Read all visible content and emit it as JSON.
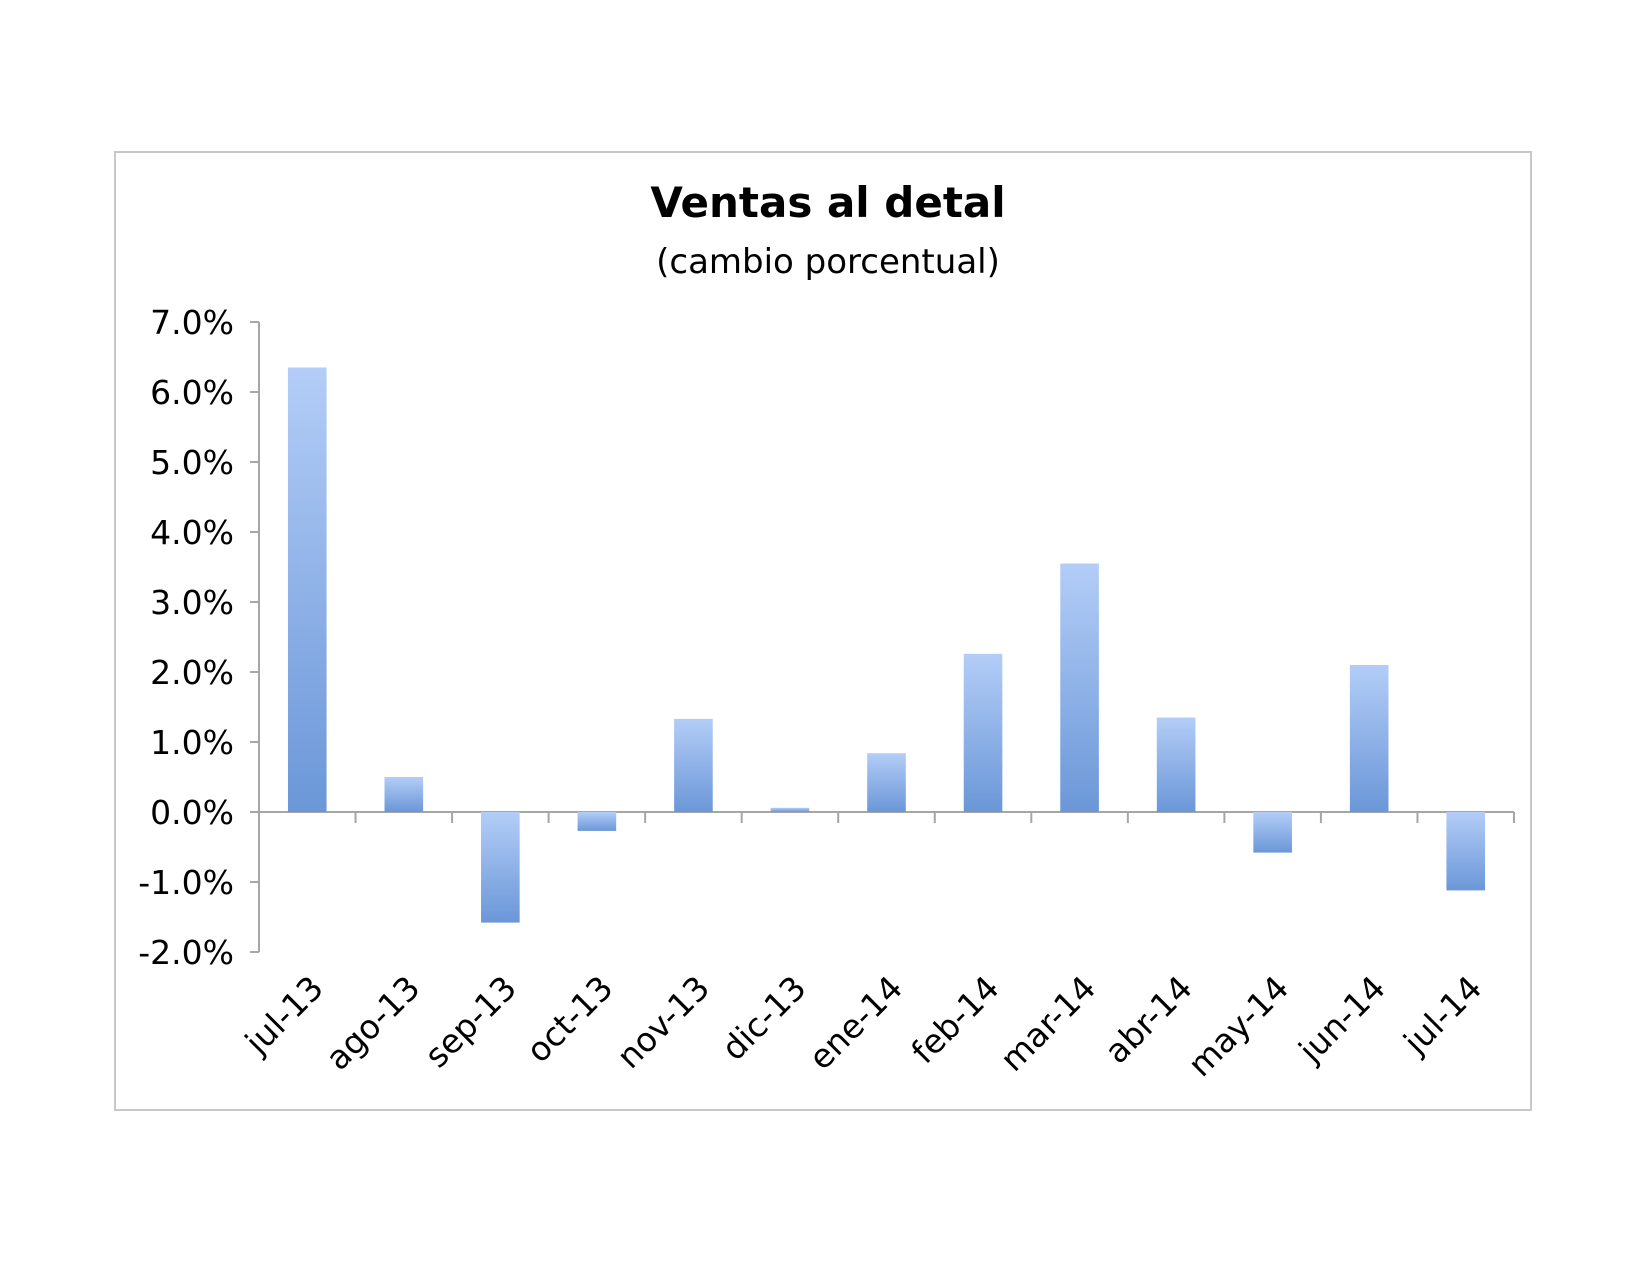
{
  "chart_data": {
    "type": "bar",
    "title": "Ventas al detal",
    "subtitle": "(cambio porcentual)",
    "xlabel": "",
    "ylabel": "",
    "categories": [
      "jul-13",
      "ago-13",
      "sep-13",
      "oct-13",
      "nov-13",
      "dic-13",
      "ene-14",
      "feb-14",
      "mar-14",
      "abr-14",
      "may-14",
      "jun-14",
      "jul-14"
    ],
    "values": [
      6.35,
      0.5,
      -1.58,
      -0.27,
      1.33,
      0.06,
      0.84,
      2.26,
      3.55,
      1.35,
      -0.58,
      2.1,
      -1.12
    ],
    "ylim": [
      -2.0,
      7.0
    ],
    "yticks": [
      7.0,
      6.0,
      5.0,
      4.0,
      3.0,
      2.0,
      1.0,
      0.0,
      -1.0,
      -2.0
    ],
    "ytick_labels": [
      "7.0%",
      "6.0%",
      "5.0%",
      "4.0%",
      "3.0%",
      "2.0%",
      "1.0%",
      "0.0%",
      "-1.0%",
      "-2.0%"
    ],
    "grid": false,
    "legend": "none",
    "colors": {
      "bar_light": "#b3cdf7",
      "bar_dark": "#6b97d8",
      "axis": "#a6a6a6"
    }
  }
}
